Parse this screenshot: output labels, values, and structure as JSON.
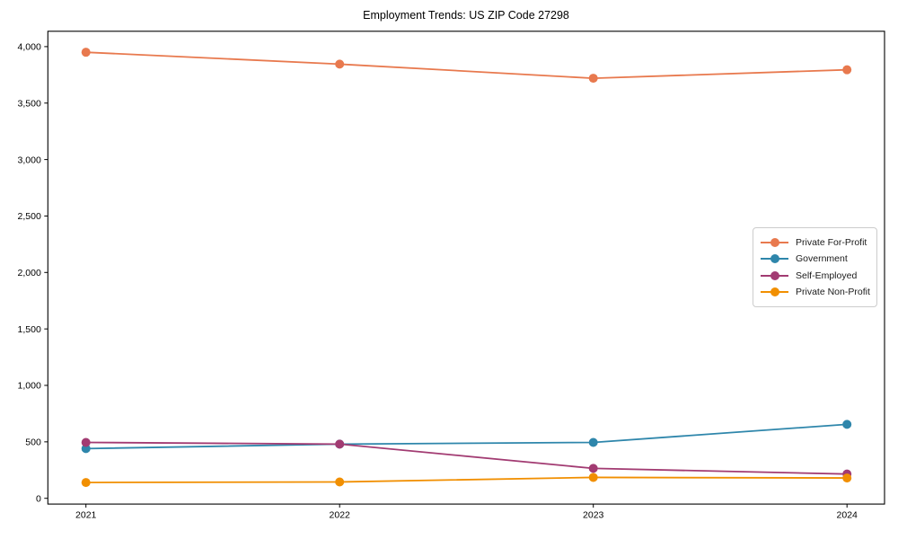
{
  "chart_data": {
    "type": "line",
    "title": "Employment Trends: US ZIP Code 27298",
    "xlabel": "",
    "ylabel": "",
    "x": [
      2021,
      2022,
      2023,
      2024
    ],
    "x_tick_labels": [
      "2021",
      "2022",
      "2023",
      "2024"
    ],
    "ylim": [
      -50,
      4140
    ],
    "yticks": [
      0,
      500,
      1000,
      1500,
      2000,
      2500,
      3000,
      3500,
      4000
    ],
    "ytick_labels": [
      "0",
      "500",
      "1,000",
      "1,500",
      "2,000",
      "2,500",
      "3,000",
      "3,500",
      "4,000"
    ],
    "grid": false,
    "marker": "circle",
    "legend_position": "center right",
    "series": [
      {
        "name": "Private For-Profit",
        "color": "#E8794E",
        "values": [
          3950,
          3845,
          3720,
          3795
        ]
      },
      {
        "name": "Government",
        "color": "#2E86AB",
        "values": [
          440,
          480,
          495,
          655
        ]
      },
      {
        "name": "Self-Employed",
        "color": "#A23B72",
        "values": [
          495,
          480,
          265,
          215
        ]
      },
      {
        "name": "Private Non-Profit",
        "color": "#F18F01",
        "values": [
          140,
          145,
          185,
          180
        ]
      }
    ]
  }
}
